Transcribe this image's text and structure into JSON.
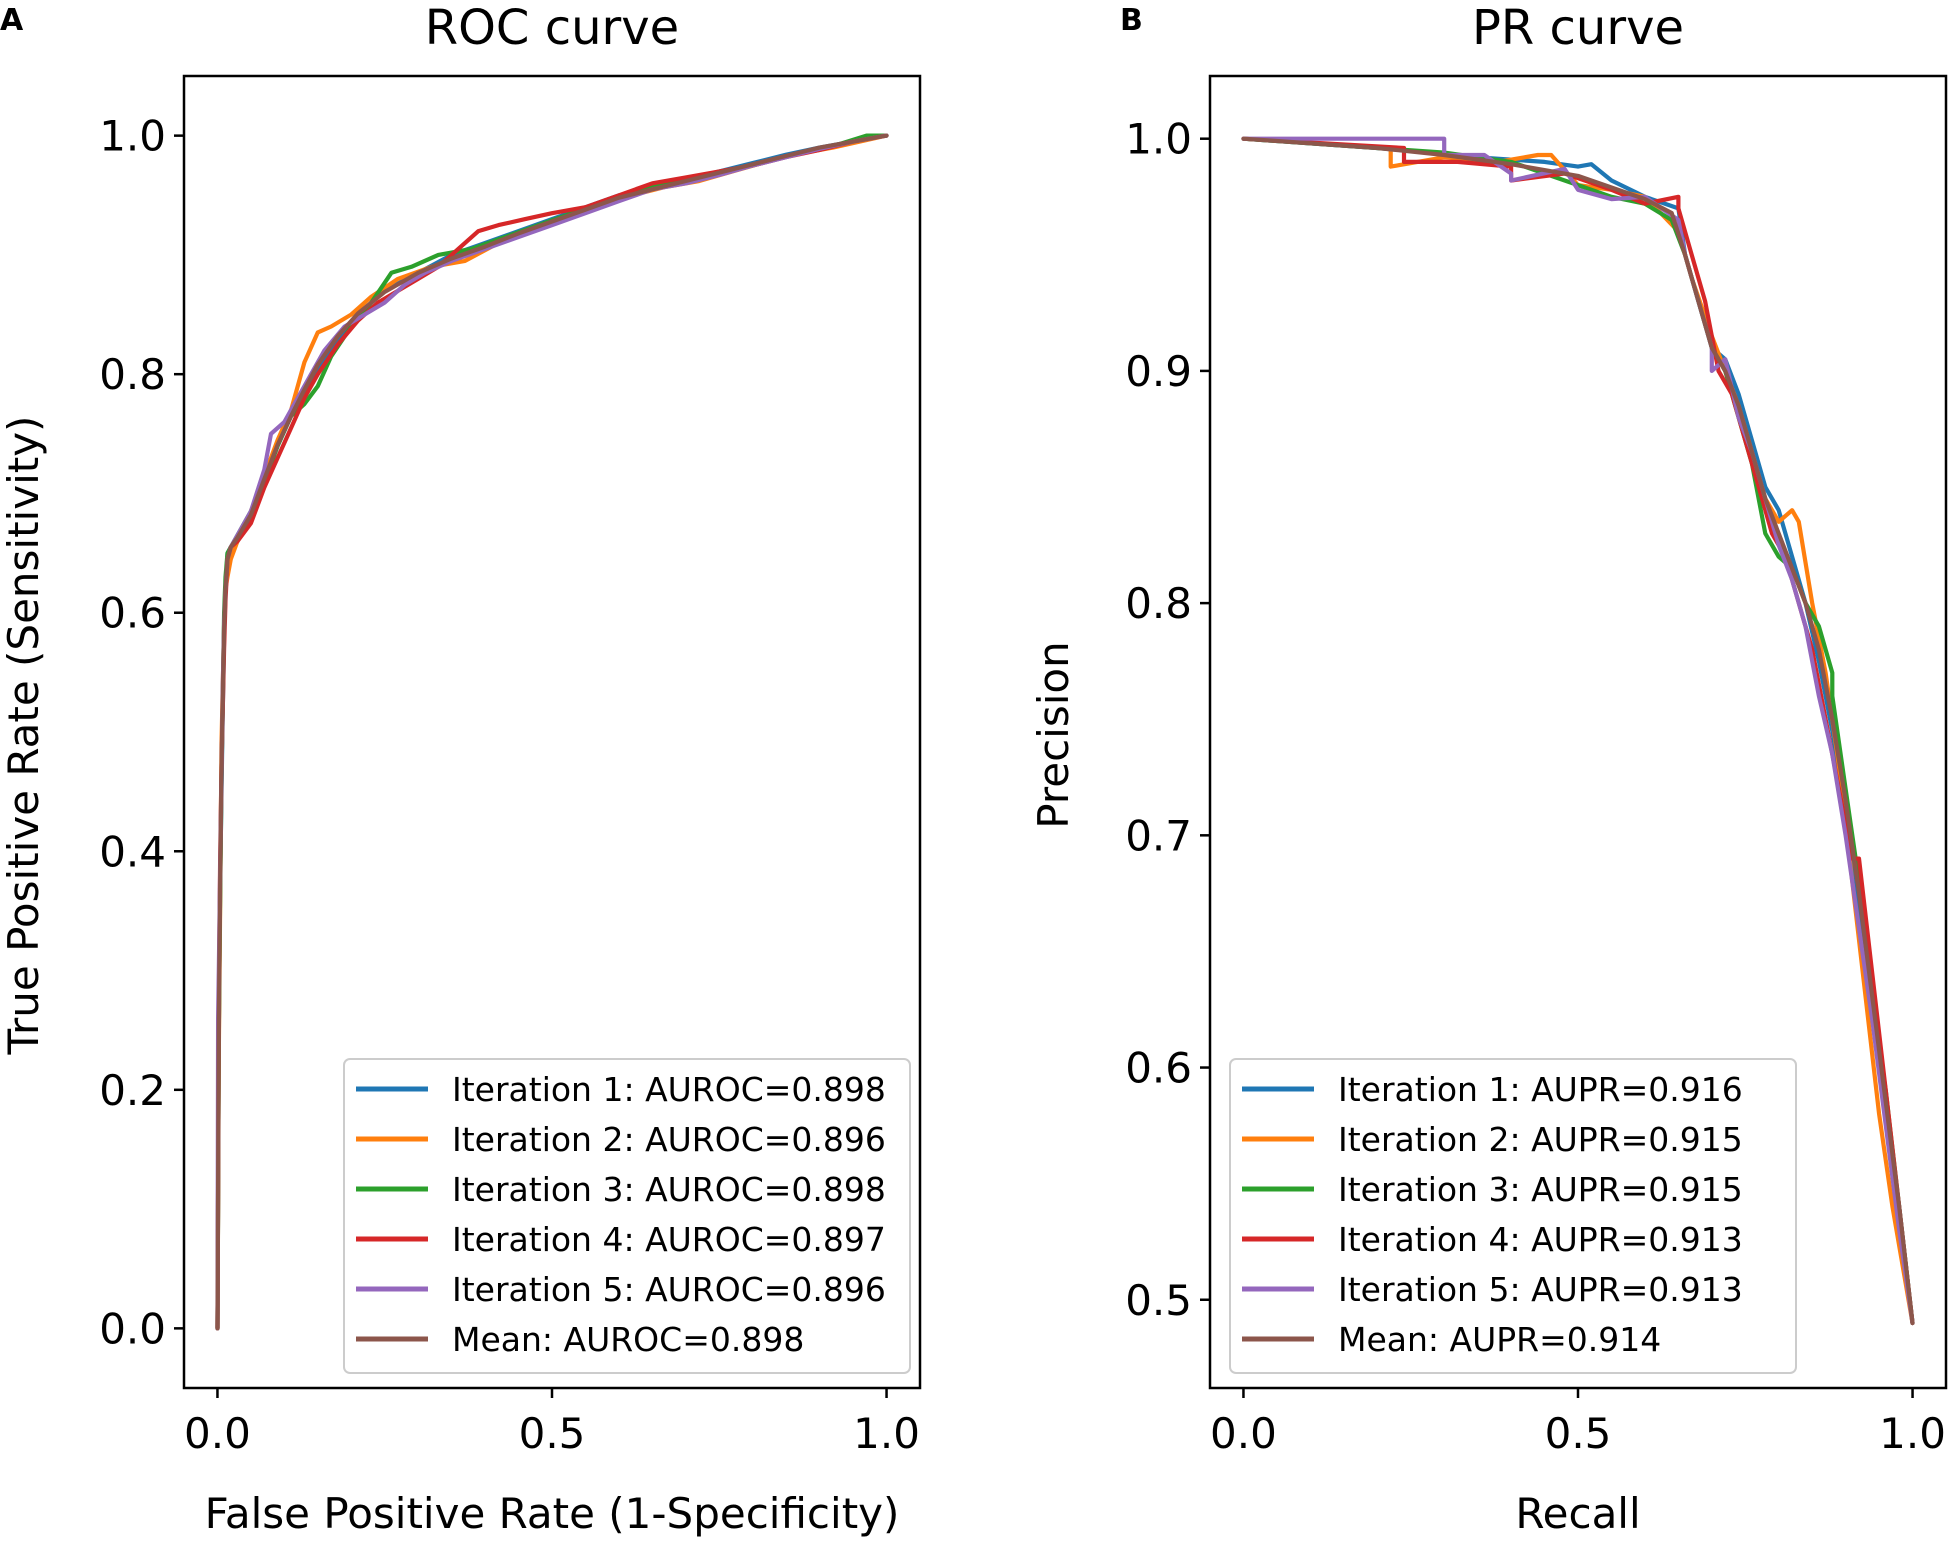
{
  "panels": [
    {
      "letter": "A",
      "chart_data": {
        "type": "line",
        "title": "ROC curve",
        "xlabel": "False Positive Rate (1-Specificity)",
        "ylabel": "True Positive Rate (Sensitivity)",
        "xlim": [
          -0.05,
          1.05
        ],
        "ylim": [
          -0.05,
          1.05
        ],
        "xticks": [
          0.0,
          0.5,
          1.0
        ],
        "xtick_labels": [
          "0.0",
          "0.5",
          "1.0"
        ],
        "yticks": [
          0.0,
          0.2,
          0.4,
          0.6,
          0.8,
          1.0
        ],
        "ytick_labels": [
          "0.0",
          "0.2",
          "0.4",
          "0.6",
          "0.8",
          "1.0"
        ],
        "legend_position": "lower-right",
        "series": [
          {
            "name": "Iteration 1: AUROC=0.898",
            "color": "#1f77b4",
            "x": [
              0,
              0.002,
              0.004,
              0.006,
              0.008,
              0.01,
              0.012,
              0.015,
              0.02,
              0.03,
              0.05,
              0.07,
              0.09,
              0.11,
              0.13,
              0.15,
              0.18,
              0.21,
              0.25,
              0.3,
              0.35,
              0.4,
              0.45,
              0.5,
              0.55,
              0.6,
              0.65,
              0.7,
              0.75,
              0.8,
              0.85,
              0.9,
              0.95,
              1.0
            ],
            "y": [
              0,
              0.24,
              0.37,
              0.45,
              0.52,
              0.58,
              0.62,
              0.65,
              0.655,
              0.66,
              0.68,
              0.71,
              0.74,
              0.765,
              0.785,
              0.805,
              0.83,
              0.85,
              0.87,
              0.885,
              0.9,
              0.91,
              0.92,
              0.93,
              0.94,
              0.95,
              0.955,
              0.963,
              0.97,
              0.977,
              0.984,
              0.99,
              0.995,
              1.0
            ]
          },
          {
            "name": "Iteration 2: AUROC=0.896",
            "color": "#ff7f0e",
            "x": [
              0,
              0.002,
              0.004,
              0.006,
              0.008,
              0.01,
              0.012,
              0.015,
              0.02,
              0.03,
              0.05,
              0.07,
              0.09,
              0.11,
              0.13,
              0.15,
              0.17,
              0.2,
              0.23,
              0.27,
              0.32,
              0.37,
              0.42,
              0.47,
              0.52,
              0.57,
              0.62,
              0.67,
              0.72,
              0.77,
              0.82,
              0.87,
              0.92,
              0.96,
              1.0
            ],
            "y": [
              0,
              0.23,
              0.35,
              0.49,
              0.54,
              0.59,
              0.62,
              0.63,
              0.645,
              0.66,
              0.685,
              0.715,
              0.745,
              0.77,
              0.81,
              0.835,
              0.84,
              0.85,
              0.865,
              0.88,
              0.89,
              0.895,
              0.91,
              0.92,
              0.93,
              0.94,
              0.95,
              0.957,
              0.962,
              0.97,
              0.978,
              0.985,
              0.99,
              0.995,
              1.0
            ]
          },
          {
            "name": "Iteration 3: AUROC=0.898",
            "color": "#2ca02c",
            "x": [
              0,
              0.002,
              0.004,
              0.006,
              0.008,
              0.01,
              0.012,
              0.015,
              0.02,
              0.03,
              0.05,
              0.07,
              0.09,
              0.11,
              0.13,
              0.15,
              0.17,
              0.2,
              0.23,
              0.26,
              0.29,
              0.33,
              0.38,
              0.43,
              0.48,
              0.53,
              0.58,
              0.63,
              0.68,
              0.73,
              0.78,
              0.83,
              0.88,
              0.93,
              0.97,
              1.0
            ],
            "y": [
              0,
              0.25,
              0.36,
              0.46,
              0.53,
              0.6,
              0.63,
              0.65,
              0.655,
              0.665,
              0.685,
              0.71,
              0.74,
              0.765,
              0.775,
              0.79,
              0.815,
              0.84,
              0.86,
              0.885,
              0.89,
              0.9,
              0.905,
              0.915,
              0.925,
              0.935,
              0.945,
              0.955,
              0.96,
              0.965,
              0.972,
              0.98,
              0.987,
              0.993,
              1.0,
              1.0
            ]
          },
          {
            "name": "Iteration 4: AUROC=0.897",
            "color": "#d62728",
            "x": [
              0,
              0.002,
              0.004,
              0.006,
              0.008,
              0.01,
              0.012,
              0.015,
              0.02,
              0.03,
              0.05,
              0.07,
              0.09,
              0.11,
              0.13,
              0.15,
              0.18,
              0.21,
              0.24,
              0.27,
              0.3,
              0.33,
              0.36,
              0.39,
              0.42,
              0.46,
              0.5,
              0.55,
              0.6,
              0.65,
              0.7,
              0.75,
              0.8,
              0.85,
              0.9,
              0.95,
              1.0
            ],
            "y": [
              0,
              0.27,
              0.39,
              0.47,
              0.52,
              0.57,
              0.61,
              0.645,
              0.655,
              0.66,
              0.675,
              0.705,
              0.73,
              0.755,
              0.78,
              0.8,
              0.825,
              0.845,
              0.86,
              0.87,
              0.88,
              0.89,
              0.905,
              0.92,
              0.925,
              0.93,
              0.935,
              0.94,
              0.95,
              0.96,
              0.965,
              0.97,
              0.975,
              0.982,
              0.988,
              0.995,
              1.0
            ]
          },
          {
            "name": "Iteration 5: AUROC=0.896",
            "color": "#9467bd",
            "x": [
              0,
              0.001,
              0.002,
              0.004,
              0.006,
              0.008,
              0.01,
              0.012,
              0.015,
              0.02,
              0.03,
              0.05,
              0.07,
              0.08,
              0.1,
              0.12,
              0.14,
              0.16,
              0.19,
              0.22,
              0.25,
              0.28,
              0.31,
              0.35,
              0.4,
              0.45,
              0.5,
              0.55,
              0.6,
              0.65,
              0.7,
              0.75,
              0.8,
              0.85,
              0.9,
              0.95,
              1.0
            ],
            "y": [
              0,
              0.26,
              0.3,
              0.38,
              0.46,
              0.54,
              0.59,
              0.62,
              0.645,
              0.655,
              0.665,
              0.685,
              0.72,
              0.75,
              0.76,
              0.78,
              0.8,
              0.82,
              0.84,
              0.85,
              0.86,
              0.875,
              0.885,
              0.895,
              0.905,
              0.915,
              0.925,
              0.935,
              0.945,
              0.955,
              0.96,
              0.967,
              0.975,
              0.982,
              0.989,
              0.995,
              1.0
            ]
          },
          {
            "name": "Mean: AUROC=0.898",
            "color": "#8c564b",
            "x": [
              0,
              0.002,
              0.004,
              0.006,
              0.008,
              0.01,
              0.012,
              0.015,
              0.02,
              0.03,
              0.05,
              0.07,
              0.09,
              0.11,
              0.13,
              0.15,
              0.18,
              0.21,
              0.25,
              0.3,
              0.35,
              0.4,
              0.45,
              0.5,
              0.55,
              0.6,
              0.65,
              0.7,
              0.75,
              0.8,
              0.85,
              0.9,
              0.95,
              1.0
            ],
            "y": [
              0,
              0.25,
              0.37,
              0.47,
              0.53,
              0.585,
              0.62,
              0.645,
              0.655,
              0.663,
              0.682,
              0.712,
              0.741,
              0.765,
              0.787,
              0.808,
              0.832,
              0.851,
              0.869,
              0.885,
              0.897,
              0.907,
              0.918,
              0.928,
              0.938,
              0.948,
              0.955,
              0.962,
              0.969,
              0.976,
              0.983,
              0.99,
              0.995,
              1.0
            ]
          }
        ]
      }
    },
    {
      "letter": "B",
      "chart_data": {
        "type": "line",
        "title": "PR curve",
        "xlabel": "Recall",
        "ylabel": "Precision",
        "xlim": [
          -0.05,
          1.05
        ],
        "ylim": [
          0.462,
          1.027
        ],
        "xticks": [
          0.0,
          0.5,
          1.0
        ],
        "xtick_labels": [
          "0.0",
          "0.5",
          "1.0"
        ],
        "yticks": [
          0.5,
          0.6,
          0.7,
          0.8,
          0.9,
          1.0
        ],
        "ytick_labels": [
          "0.5",
          "0.6",
          "0.7",
          "0.8",
          "0.9",
          "1.0"
        ],
        "legend_position": "lower-left",
        "series": [
          {
            "name": "Iteration 1: AUPR=0.916",
            "color": "#1f77b4",
            "x": [
              0,
              0.2,
              0.35,
              0.45,
              0.5,
              0.52,
              0.55,
              0.6,
              0.65,
              0.66,
              0.68,
              0.7,
              0.72,
              0.74,
              0.76,
              0.78,
              0.8,
              0.82,
              0.84,
              0.86,
              0.88,
              0.9,
              0.92,
              0.94,
              0.96,
              0.98,
              1.0
            ],
            "y": [
              1.0,
              0.996,
              0.992,
              0.99,
              0.988,
              0.989,
              0.982,
              0.975,
              0.97,
              0.95,
              0.93,
              0.91,
              0.905,
              0.89,
              0.87,
              0.85,
              0.84,
              0.82,
              0.8,
              0.775,
              0.745,
              0.71,
              0.67,
              0.63,
              0.585,
              0.54,
              0.49
            ]
          },
          {
            "name": "Iteration 2: AUPR=0.915",
            "color": "#ff7f0e",
            "x": [
              0,
              0.22,
              0.22,
              0.3,
              0.38,
              0.44,
              0.46,
              0.5,
              0.55,
              0.6,
              0.63,
              0.65,
              0.67,
              0.7,
              0.72,
              0.74,
              0.76,
              0.78,
              0.8,
              0.82,
              0.83,
              0.85,
              0.87,
              0.89,
              0.91,
              0.93,
              0.95,
              0.97,
              1.0
            ],
            "y": [
              1.0,
              0.996,
              0.988,
              0.992,
              0.99,
              0.993,
              0.993,
              0.98,
              0.978,
              0.975,
              0.966,
              0.96,
              0.94,
              0.915,
              0.9,
              0.885,
              0.865,
              0.845,
              0.835,
              0.84,
              0.835,
              0.8,
              0.77,
              0.73,
              0.68,
              0.63,
              0.58,
              0.54,
              0.49
            ]
          },
          {
            "name": "Iteration 3: AUPR=0.915",
            "color": "#2ca02c",
            "x": [
              0,
              0.2,
              0.3,
              0.4,
              0.45,
              0.5,
              0.55,
              0.6,
              0.64,
              0.66,
              0.68,
              0.7,
              0.72,
              0.74,
              0.76,
              0.78,
              0.8,
              0.82,
              0.84,
              0.86,
              0.88,
              0.88,
              0.9,
              0.92,
              0.94,
              0.96,
              0.98,
              1.0
            ],
            "y": [
              1.0,
              0.996,
              0.994,
              0.99,
              0.985,
              0.98,
              0.975,
              0.972,
              0.965,
              0.95,
              0.93,
              0.91,
              0.9,
              0.88,
              0.86,
              0.83,
              0.82,
              0.815,
              0.8,
              0.79,
              0.77,
              0.76,
              0.72,
              0.68,
              0.63,
              0.59,
              0.54,
              0.49
            ]
          },
          {
            "name": "Iteration 4: AUPR=0.913",
            "color": "#d62728",
            "x": [
              0,
              0.24,
              0.24,
              0.32,
              0.4,
              0.4,
              0.48,
              0.55,
              0.6,
              0.65,
              0.65,
              0.67,
              0.69,
              0.71,
              0.73,
              0.75,
              0.77,
              0.79,
              0.81,
              0.83,
              0.85,
              0.87,
              0.89,
              0.91,
              0.92,
              0.94,
              0.96,
              0.98,
              1.0
            ],
            "y": [
              1.0,
              0.996,
              0.99,
              0.99,
              0.988,
              0.982,
              0.985,
              0.978,
              0.972,
              0.975,
              0.97,
              0.95,
              0.93,
              0.9,
              0.89,
              0.87,
              0.85,
              0.83,
              0.82,
              0.8,
              0.78,
              0.75,
              0.72,
              0.69,
              0.69,
              0.64,
              0.59,
              0.54,
              0.49
            ]
          },
          {
            "name": "Iteration 5: AUPR=0.913",
            "color": "#9467bd",
            "x": [
              0,
              0.3,
              0.3,
              0.36,
              0.4,
              0.4,
              0.48,
              0.5,
              0.55,
              0.6,
              0.65,
              0.66,
              0.68,
              0.7,
              0.7,
              0.72,
              0.74,
              0.76,
              0.78,
              0.8,
              0.82,
              0.84,
              0.86,
              0.88,
              0.9,
              0.92,
              0.94,
              0.96,
              0.98,
              1.0
            ],
            "y": [
              1.0,
              1.0,
              0.993,
              0.993,
              0.985,
              0.982,
              0.987,
              0.978,
              0.974,
              0.975,
              0.965,
              0.95,
              0.93,
              0.91,
              0.9,
              0.905,
              0.88,
              0.865,
              0.845,
              0.825,
              0.81,
              0.79,
              0.76,
              0.735,
              0.7,
              0.66,
              0.62,
              0.575,
              0.53,
              0.49
            ]
          },
          {
            "name": "Mean: AUPR=0.914",
            "color": "#8c564b",
            "x": [
              0,
              0.2,
              0.3,
              0.4,
              0.5,
              0.55,
              0.6,
              0.64,
              0.66,
              0.68,
              0.7,
              0.72,
              0.74,
              0.76,
              0.78,
              0.8,
              0.82,
              0.84,
              0.86,
              0.88,
              0.9,
              0.92,
              0.94,
              0.96,
              0.98,
              1.0
            ],
            "y": [
              1.0,
              0.996,
              0.993,
              0.989,
              0.984,
              0.979,
              0.974,
              0.968,
              0.95,
              0.93,
              0.91,
              0.9,
              0.885,
              0.865,
              0.845,
              0.83,
              0.815,
              0.8,
              0.78,
              0.75,
              0.715,
              0.675,
              0.63,
              0.585,
              0.54,
              0.49
            ]
          }
        ]
      }
    }
  ]
}
